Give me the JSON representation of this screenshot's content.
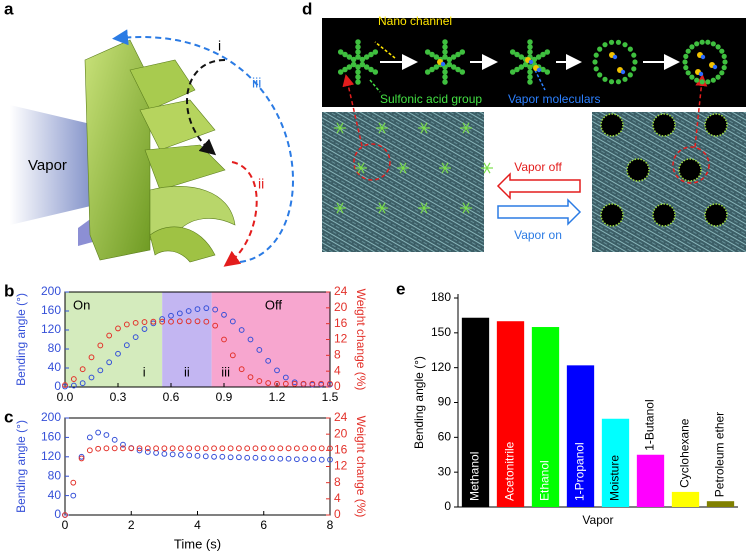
{
  "panels": {
    "a": {
      "letter": "a",
      "vapor": "Vapor",
      "steps": [
        "i",
        "ii",
        "iii"
      ]
    },
    "d": {
      "letter": "d",
      "nano_channel": "Nano channel",
      "sulfonic": "Sulfonic acid group",
      "vapor_molecules": "Vapor moleculars",
      "vapor_off": "Vapor off",
      "vapor_on": "Vapor on"
    }
  },
  "chart_data": [
    {
      "type": "scatter",
      "panel": "b",
      "ylabel": "Bending angle (°)",
      "y2label": "Weight change (%)",
      "xlim": [
        0,
        1.5
      ],
      "xticks": [
        {
          "value": 0,
          "label": "0.0"
        },
        0.3,
        0.6,
        0.9,
        1.2,
        1.5
      ],
      "ylim": [
        0,
        200
      ],
      "yticks": [
        0,
        40,
        80,
        120,
        160,
        200
      ],
      "y2lim": [
        0,
        24
      ],
      "y2ticks": [
        0,
        4,
        8,
        12,
        16,
        20,
        24
      ],
      "regions": [
        {
          "x0": 0,
          "x1": 0.55,
          "color": "#d4ebbd",
          "label": "On",
          "stage": "i"
        },
        {
          "x0": 0.55,
          "x1": 0.83,
          "color": "#c3b6f2",
          "stage": "ii"
        },
        {
          "x0": 0.83,
          "x1": 1.5,
          "color": "#f7a6cf",
          "label": "Off",
          "stage": "iii"
        }
      ],
      "x": [
        0,
        0.05,
        0.1,
        0.15,
        0.2,
        0.25,
        0.3,
        0.35,
        0.4,
        0.45,
        0.5,
        0.55,
        0.6,
        0.65,
        0.7,
        0.75,
        0.8,
        0.85,
        0.9,
        0.95,
        1.0,
        1.05,
        1.1,
        1.15,
        1.2,
        1.25,
        1.3,
        1.35,
        1.4,
        1.45,
        1.5
      ],
      "series": [
        {
          "color": "#3550d8",
          "values": [
            1,
            3,
            8,
            20,
            35,
            52,
            70,
            88,
            105,
            122,
            134,
            143,
            150,
            155,
            160,
            164,
            166,
            163,
            152,
            138,
            120,
            100,
            78,
            55,
            35,
            20,
            10,
            6,
            5,
            5,
            5
          ]
        },
        {
          "color": "#e3322b",
          "axis": "y2",
          "values": [
            0.5,
            2,
            4.5,
            7.5,
            10.5,
            13,
            14.8,
            15.8,
            16.2,
            16.4,
            16.5,
            16.5,
            16.5,
            16.6,
            16.6,
            16.6,
            16.5,
            15.5,
            12,
            8,
            4.5,
            2.5,
            1.5,
            1,
            0.8,
            0.8,
            0.8,
            0.8,
            0.8,
            0.8,
            0.8
          ]
        }
      ]
    },
    {
      "type": "scatter",
      "panel": "c",
      "xlabel": "Time (s)",
      "ylabel": "Bending angle (°)",
      "y2label": "Weight change (%)",
      "xlim": [
        0,
        8
      ],
      "xticks": [
        0,
        2,
        4,
        6,
        8
      ],
      "ylim": [
        0,
        200
      ],
      "yticks": [
        0,
        40,
        80,
        120,
        160,
        200
      ],
      "y2lim": [
        0,
        24
      ],
      "y2ticks": [
        0,
        4,
        8,
        12,
        16,
        20,
        24
      ],
      "x": [
        0,
        0.25,
        0.5,
        0.75,
        1,
        1.25,
        1.5,
        1.75,
        2,
        2.25,
        2.5,
        2.75,
        3,
        3.25,
        3.5,
        3.75,
        4,
        4.25,
        4.5,
        4.75,
        5,
        5.25,
        5.5,
        5.75,
        6,
        6.25,
        6.5,
        6.75,
        7,
        7.25,
        7.5,
        7.75,
        8
      ],
      "series": [
        {
          "color": "#3550d8",
          "values": [
            0,
            40,
            120,
            160,
            170,
            165,
            155,
            145,
            138,
            133,
            130,
            128,
            126,
            125,
            124,
            123,
            122,
            121,
            120,
            120,
            119,
            119,
            118,
            118,
            117,
            117,
            116,
            116,
            115,
            115,
            115,
            114,
            114
          ]
        },
        {
          "color": "#e3322b",
          "axis": "y2",
          "values": [
            0,
            8,
            14,
            16,
            16.4,
            16.5,
            16.5,
            16.5,
            16.5,
            16.5,
            16.5,
            16.5,
            16.5,
            16.5,
            16.5,
            16.5,
            16.5,
            16.5,
            16.5,
            16.5,
            16.5,
            16.5,
            16.5,
            16.5,
            16.5,
            16.5,
            16.5,
            16.5,
            16.5,
            16.5,
            16.5,
            16.5,
            16.5
          ]
        }
      ]
    },
    {
      "type": "bar",
      "panel": "e",
      "xlabel": "Vapor",
      "ylabel": "Bending angle (°)",
      "categories": [
        "Methanol",
        "Acetonitrile",
        "Ethanol",
        "1-Propanol",
        "Moisture",
        "1-Butanol",
        "Cyclohexane",
        "Petroleum ether"
      ],
      "values": [
        163,
        160,
        155,
        122,
        76,
        45,
        13,
        5
      ],
      "colors": [
        "#000000",
        "#ff0000",
        "#00ff00",
        "#0000ff",
        "#00ffff",
        "#ff00ff",
        "#ffff00",
        "#808000"
      ],
      "ylim": [
        0,
        180
      ],
      "yticks": [
        0,
        30,
        60,
        90,
        120,
        150,
        180
      ]
    }
  ]
}
